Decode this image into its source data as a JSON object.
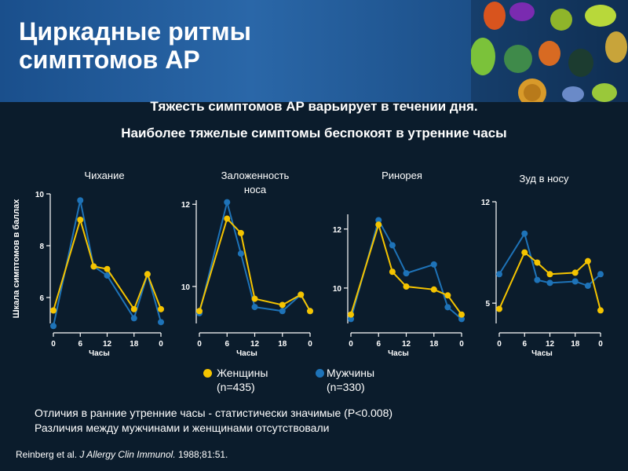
{
  "title_lines": [
    "Циркадные ритмы",
    "симптомов АР"
  ],
  "subtitle_lines": [
    "Тяжесть симптомов АР варьирует в течении дня.",
    "Наиболее тяжелые симптомы беспокоят в утренние часы"
  ],
  "legend": {
    "women": {
      "label": "Женщины",
      "n": "(n=435)",
      "color": "#f5c400"
    },
    "men": {
      "label": "Мужчины",
      "n": "(n=330)",
      "color": "#1e73b8"
    }
  },
  "notes": [
    "Отличия в ранние утренние часы - статистически значимые (P<0.008)",
    "Различия между мужчинами и женщинами отсутствовали"
  ],
  "source": {
    "authors": "Reinberg et al.",
    "journal": "J Allergy Clin Immunol.",
    "rest": "1988;81:51."
  },
  "chart_data": [
    {
      "type": "line",
      "title": "Чихание",
      "ylabel": "Шкала симптомов в баллах",
      "xlabel": "Часы",
      "xticks": [
        "0",
        "6",
        "12",
        "18",
        "0"
      ],
      "x": [
        0,
        6,
        9,
        12,
        18,
        21,
        24
      ],
      "ylim": [
        5,
        10
      ],
      "yticks": [
        6,
        8,
        10
      ],
      "series": [
        {
          "name": "Женщины",
          "color": "#f5c400",
          "values": [
            5.5,
            9.0,
            7.2,
            7.1,
            5.55,
            6.9,
            5.55
          ]
        },
        {
          "name": "Мужчины",
          "color": "#1e73b8",
          "values": [
            4.9,
            9.75,
            7.2,
            6.85,
            5.2,
            6.9,
            5.05
          ]
        }
      ]
    },
    {
      "type": "line",
      "title": "Заложенность носа",
      "xlabel": "Часы",
      "xticks": [
        "0",
        "6",
        "12",
        "18",
        "0"
      ],
      "x": [
        0,
        6,
        9,
        12,
        18,
        22,
        24
      ],
      "ylim": [
        9.1,
        12.1
      ],
      "yticks": [
        10,
        12
      ],
      "series": [
        {
          "name": "Женщины",
          "color": "#f5c400",
          "values": [
            9.4,
            11.65,
            11.3,
            9.7,
            9.55,
            9.8,
            9.4
          ]
        },
        {
          "name": "Мужчины",
          "color": "#1e73b8",
          "values": [
            9.35,
            12.05,
            10.8,
            9.5,
            9.4,
            9.8,
            9.4
          ]
        }
      ]
    },
    {
      "type": "line",
      "title": "Ринорея",
      "xlabel": "Часы",
      "xticks": [
        "0",
        "6",
        "12",
        "18",
        "0"
      ],
      "x": [
        0,
        6,
        9,
        12,
        18,
        21,
        24
      ],
      "ylim": [
        8.8,
        12.5
      ],
      "yticks": [
        10,
        12
      ],
      "series": [
        {
          "name": "Женщины",
          "color": "#f5c400",
          "values": [
            9.1,
            12.15,
            10.55,
            10.05,
            9.95,
            9.75,
            9.1
          ]
        },
        {
          "name": "Мужчины",
          "color": "#1e73b8",
          "values": [
            8.95,
            12.3,
            11.45,
            10.5,
            10.8,
            9.35,
            8.95
          ]
        }
      ]
    },
    {
      "type": "line",
      "title": "Зуд в носу",
      "xlabel": "Часы",
      "xticks": [
        "0",
        "6",
        "12",
        "18",
        "0"
      ],
      "x": [
        0,
        6,
        9,
        12,
        18,
        21,
        24
      ],
      "ylim": [
        3.6,
        12
      ],
      "yticks": [
        5,
        12
      ],
      "series": [
        {
          "name": "Женщины",
          "color": "#f5c400",
          "values": [
            4.6,
            8.5,
            7.8,
            7.0,
            7.1,
            7.9,
            4.5
          ]
        },
        {
          "name": "Мужчины",
          "color": "#1e73b8",
          "values": [
            7.0,
            9.8,
            6.6,
            6.4,
            6.5,
            6.2,
            7.0
          ]
        }
      ]
    }
  ]
}
